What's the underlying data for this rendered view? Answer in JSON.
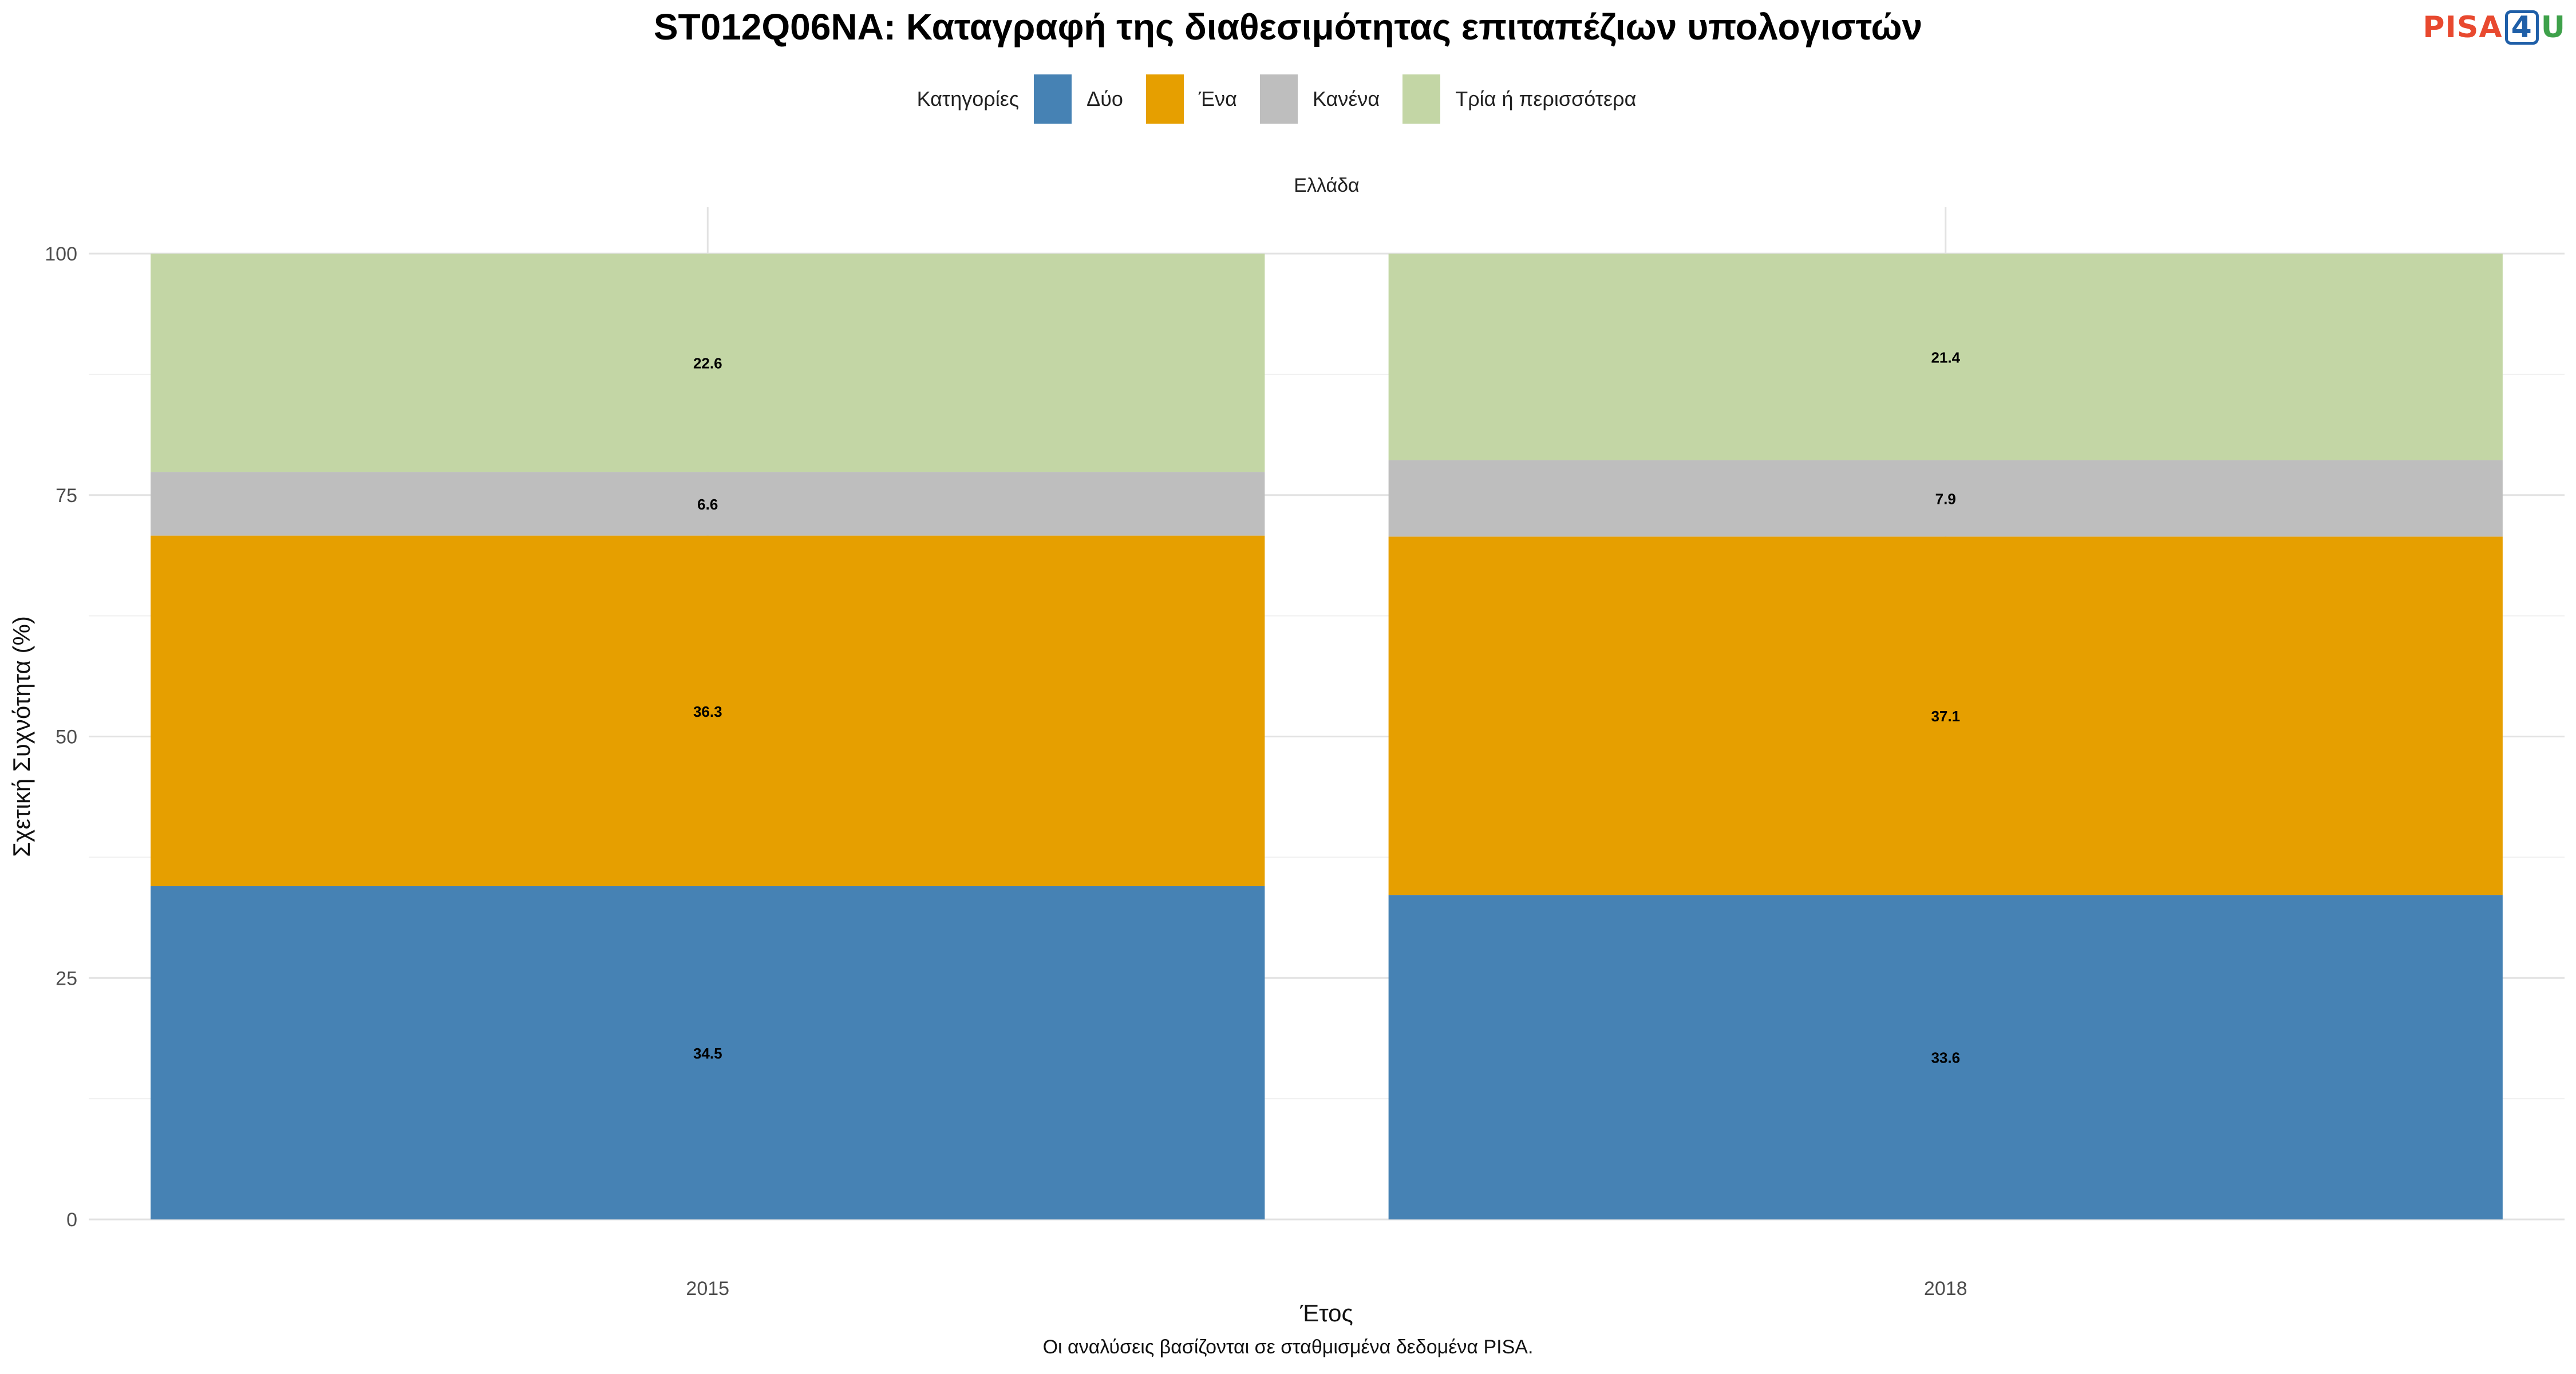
{
  "chart_data": {
    "type": "bar",
    "stacked": true,
    "title": "ST012Q06NA: Καταγραφή της διαθεσιμότητας επιταπέζιων υπολογιστών",
    "facet_label": "Ελλάδα",
    "xlabel": "Έτος",
    "ylabel": "Σχετική Συχνότητα (%)",
    "caption": "Οι αναλύσεις βασίζονται σε σταθμισμένα δεδομένα PISA.",
    "legend_title": "Κατηγορίες",
    "legend_position": "top",
    "categories": [
      "2015",
      "2018"
    ],
    "y_ticks": [
      0,
      25,
      50,
      75,
      100
    ],
    "ylim": [
      0,
      100
    ],
    "grid": true,
    "series": [
      {
        "name": "Δύο",
        "color": "#4682b4",
        "values": [
          34.5,
          33.6
        ]
      },
      {
        "name": "Ένα",
        "color": "#e69f00",
        "values": [
          36.3,
          37.1
        ]
      },
      {
        "name": "Κανένα",
        "color": "#bebebe",
        "values": [
          6.6,
          7.9
        ]
      },
      {
        "name": "Τρία ή περισσότερα",
        "color": "#c3d6a5",
        "values": [
          22.6,
          21.4
        ]
      }
    ]
  },
  "logo": {
    "pisa": "PISA",
    "four": "4",
    "u": "U"
  }
}
